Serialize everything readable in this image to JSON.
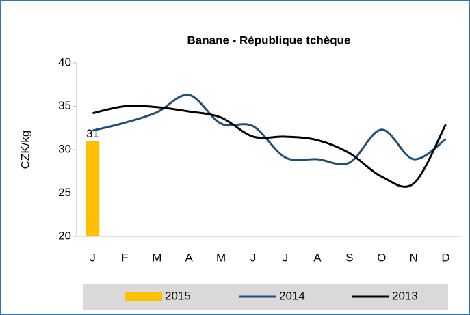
{
  "chart_data": {
    "type": "combo",
    "title": "Banane - République tchèque",
    "y_label": "CZK/kg",
    "categories": [
      "J",
      "F",
      "M",
      "A",
      "M",
      "J",
      "J",
      "A",
      "S",
      "O",
      "N",
      "D"
    ],
    "series": [
      {
        "name": "2015",
        "type": "bar",
        "color": "#ffc000",
        "values": [
          31,
          null,
          null,
          null,
          null,
          null,
          null,
          null,
          null,
          null,
          null,
          null
        ]
      },
      {
        "name": "2014",
        "type": "line",
        "color": "#1f4e79",
        "values": [
          32.2,
          33.1,
          34.3,
          36.3,
          33.0,
          32.7,
          29.1,
          28.9,
          28.5,
          32.3,
          28.9,
          31.2
        ]
      },
      {
        "name": "2013",
        "type": "line",
        "color": "#000000",
        "values": [
          34.2,
          35.0,
          34.9,
          34.4,
          33.7,
          31.5,
          31.5,
          31.1,
          29.6,
          26.9,
          26.1,
          32.9
        ]
      }
    ],
    "ylim": [
      20,
      40
    ],
    "yticks": [
      20,
      25,
      30,
      35,
      40
    ],
    "grid": false,
    "legend": "bottom"
  }
}
